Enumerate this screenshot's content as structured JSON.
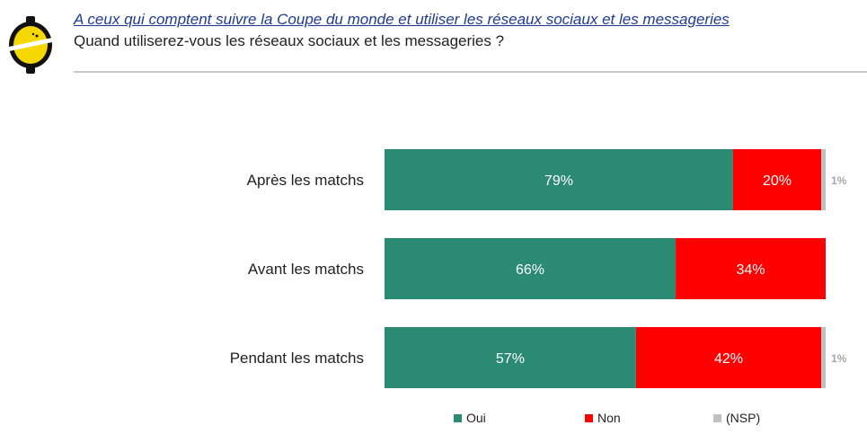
{
  "header": {
    "subtitle": "A ceux qui comptent suivre la Coupe du monde et utiliser les réseaux sociaux et les messageries",
    "question": "Quand utiliserez-vous les réseaux sociaux et les messageries ?"
  },
  "colors": {
    "oui": "#2a8a74",
    "non": "#ff0000",
    "nsp": "#c0c0c0",
    "logo_yellow": "#f5d800"
  },
  "chart_data": {
    "type": "bar",
    "orientation": "horizontal",
    "stacked": true,
    "xlim": [
      0,
      100
    ],
    "categories": [
      "Après les matchs",
      "Avant les matchs",
      "Pendant les matchs"
    ],
    "series": [
      {
        "name": "Oui",
        "values": [
          79,
          66,
          57
        ],
        "labels": [
          "79%",
          "66%",
          "57%"
        ]
      },
      {
        "name": "Non",
        "values": [
          20,
          34,
          42
        ],
        "labels": [
          "20%",
          "34%",
          "42%"
        ]
      },
      {
        "name": "(NSP)",
        "values": [
          1,
          0,
          1
        ],
        "labels": [
          "1%",
          "",
          "1%"
        ]
      }
    ],
    "legend": "bottom",
    "grid": false
  }
}
